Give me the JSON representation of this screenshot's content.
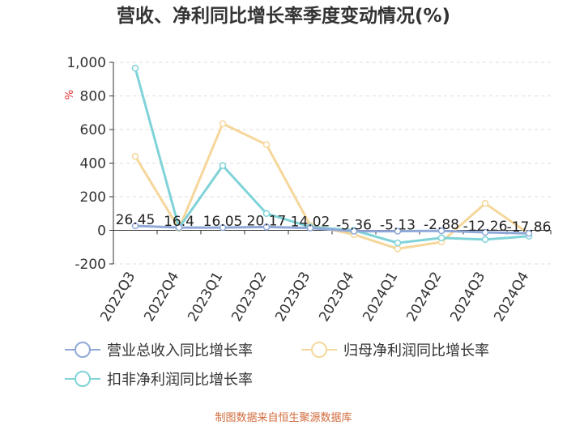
{
  "chart_data": {
    "type": "line",
    "title": "营收、净利同比增长率季度变动情况(%)",
    "unit_label": "%",
    "categories": [
      "2022Q3",
      "2022Q4",
      "2023Q1",
      "2023Q2",
      "2023Q3",
      "2023Q4",
      "2024Q1",
      "2024Q2",
      "2024Q3",
      "2024Q4"
    ],
    "ylim": [
      -200,
      1000
    ],
    "yticks": [
      -200,
      0,
      200,
      400,
      600,
      800,
      1000
    ],
    "ytick_labels": [
      "-200",
      "0",
      "200",
      "400",
      "600",
      "800",
      "1,000"
    ],
    "grid": true,
    "legend_position": "bottom",
    "series": [
      {
        "name": "营业总收入同比增长率",
        "color": "#8fa8d8",
        "values": [
          26.45,
          16.4,
          16.05,
          20.17,
          14.02,
          -5.36,
          -5.13,
          -2.88,
          -12.26,
          -17.86
        ],
        "labels": [
          "26.45",
          "16.4",
          "16.05",
          "20.17",
          "14.02",
          "-5.36",
          "-5.13",
          "-2.88",
          "-12.26",
          "-17.86"
        ]
      },
      {
        "name": "归母净利润同比增长率",
        "color": "#f5d79b",
        "values": [
          440,
          10,
          635,
          510,
          30,
          -25,
          -110,
          -70,
          160,
          -20
        ]
      },
      {
        "name": "扣非净利润同比增长率",
        "color": "#7fd3d8",
        "values": [
          965,
          15,
          385,
          100,
          20,
          0,
          -75,
          -45,
          -55,
          -35
        ]
      }
    ]
  },
  "footer": {
    "source": "制图数据来自恒生聚源数据库"
  }
}
